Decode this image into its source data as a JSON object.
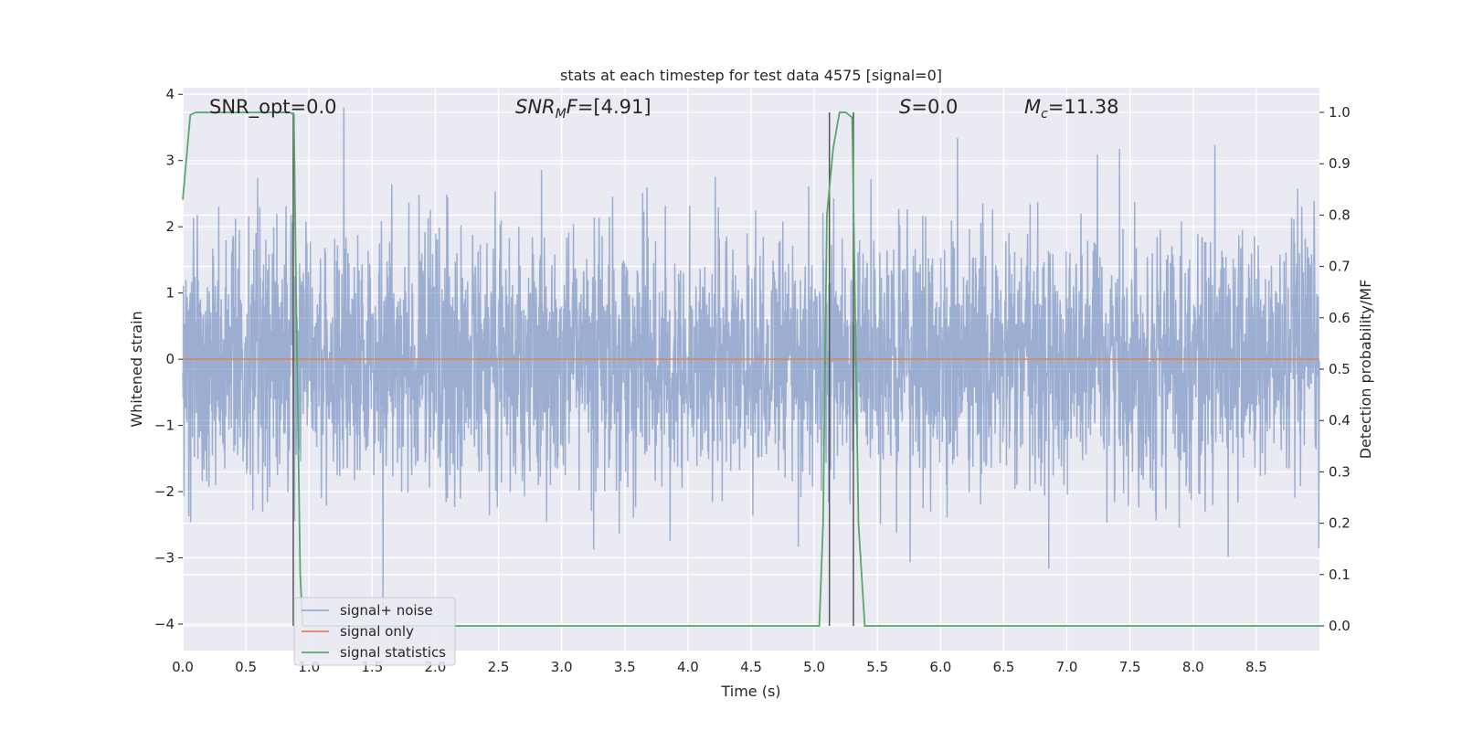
{
  "chart_data": {
    "type": "line",
    "title": "stats at each timestep for test data 4575 [signal=0]",
    "xlabel": "Time (s)",
    "ylabel_left": "Whitened strain",
    "ylabel_right": "Detection probability/MF",
    "xlim": [
      0.0,
      9.0
    ],
    "ylim_left": [
      -4.4,
      4.1
    ],
    "ylim_right": [
      -0.048,
      1.048
    ],
    "x_ticks": [
      "0.0",
      "0.5",
      "1.0",
      "1.5",
      "2.0",
      "2.5",
      "3.0",
      "3.5",
      "4.0",
      "4.5",
      "5.0",
      "5.5",
      "6.0",
      "6.5",
      "7.0",
      "7.5",
      "8.0",
      "8.5"
    ],
    "y_ticks_left": [
      "4",
      "3",
      "2",
      "1",
      "0",
      "−1",
      "−2",
      "−3",
      "−4"
    ],
    "y_ticks_right": [
      "1.0",
      "0.9",
      "0.8",
      "0.7",
      "0.6",
      "0.5",
      "0.4",
      "0.3",
      "0.2",
      "0.1",
      "0.0"
    ],
    "grid": true,
    "legend_position": "lower-left",
    "annotations": [
      {
        "name": "snr-opt",
        "parts": [
          {
            "t": "SNR_opt=0.0",
            "i": false
          }
        ]
      },
      {
        "name": "snr-mf",
        "parts": [
          {
            "t": "SNR",
            "i": true
          },
          {
            "t": "M",
            "i": true,
            "sub": true
          },
          {
            "t": "F",
            "i": true
          },
          {
            "t": "=[4.91]",
            "i": false
          }
        ]
      },
      {
        "name": "s-value",
        "parts": [
          {
            "t": "S",
            "i": true
          },
          {
            "t": "=0.0",
            "i": false
          }
        ]
      },
      {
        "name": "mc-value",
        "parts": [
          {
            "t": "M",
            "i": true
          },
          {
            "t": "c",
            "i": true,
            "sub": true
          },
          {
            "t": "=11.38",
            "i": false
          }
        ]
      }
    ],
    "series": [
      {
        "name": "signal+ noise",
        "axis": "left",
        "color": "#4c72b0",
        "alpha": 0.5,
        "description": "whitened noise, roughly Gaussian, amplitude mostly within ±2, peaks to about ±3.8"
      },
      {
        "name": "signal only",
        "axis": "left",
        "color": "#dd8452",
        "x": [
          0.0,
          9.0
        ],
        "y": [
          0.0,
          0.0
        ]
      },
      {
        "name": "signal statistics",
        "axis": "right",
        "color": "#55a868",
        "x": [
          0.0,
          0.06,
          0.1,
          0.15,
          0.85,
          0.88,
          0.9,
          0.93,
          0.95,
          1.0,
          1.05,
          5.04,
          5.07,
          5.1,
          5.15,
          5.2,
          5.25,
          5.3,
          5.35,
          5.4,
          5.45,
          9.0
        ],
        "y": [
          0.83,
          0.995,
          1.0,
          1.0,
          1.0,
          0.995,
          0.6,
          0.1,
          0.0,
          0.0,
          0.0,
          0.0,
          0.2,
          0.8,
          0.93,
          1.0,
          1.0,
          0.99,
          0.2,
          0.0,
          0.0,
          0.0
        ]
      }
    ],
    "vertical_markers": {
      "color": "#555555",
      "x": [
        0.875,
        5.12,
        5.31
      ],
      "y": [
        [
          0.0,
          1.0
        ],
        [
          0.0,
          1.0
        ],
        [
          0.0,
          1.0
        ]
      ]
    }
  }
}
